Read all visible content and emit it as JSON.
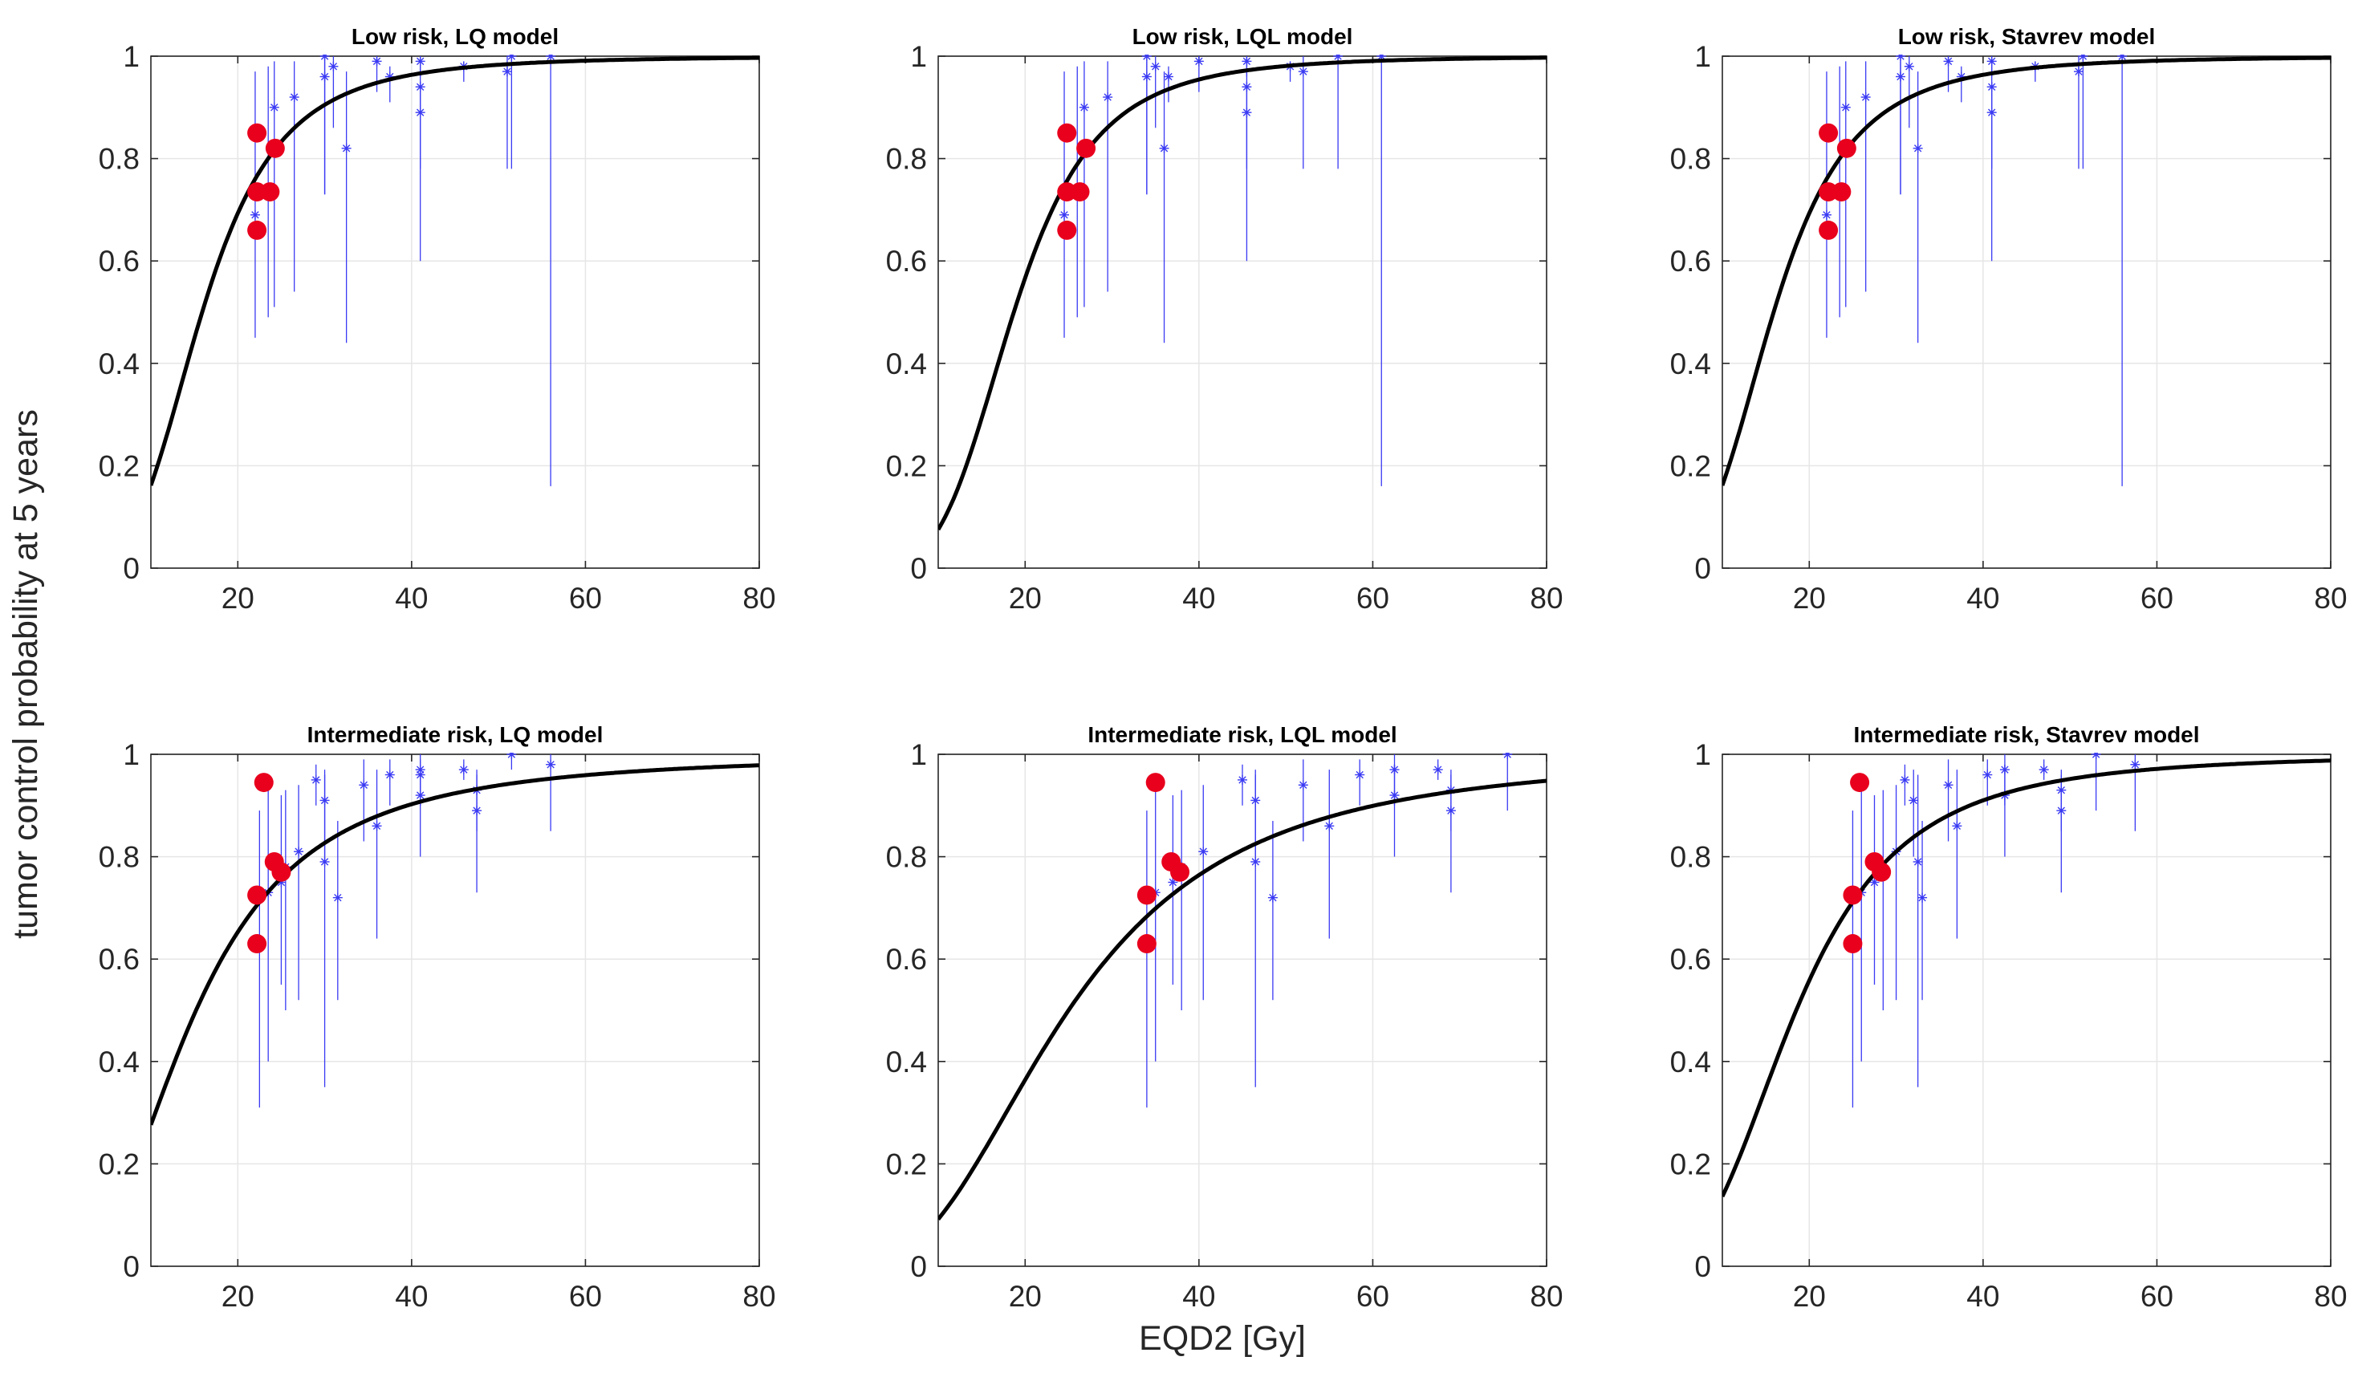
{
  "figure": {
    "xlabel": "EQD2 [Gy]",
    "ylabel": "tumor control probability at 5 years"
  },
  "colors": {
    "curve": "#000000",
    "observed": "#e8001d",
    "clinical": "#3a3af4",
    "grid": "#e6e6e6",
    "axis": "#262626"
  },
  "chart_data": [
    {
      "type": "scatter",
      "title": "Low risk, LQ model",
      "xlim": [
        10,
        80
      ],
      "ylim": [
        0,
        1
      ],
      "xticks": [
        20,
        40,
        60,
        80
      ],
      "yticks": [
        0,
        0.2,
        0.4,
        0.6,
        0.8,
        1
      ],
      "curve": {
        "d50": 15.9,
        "k": 3.55
      },
      "clinical": [
        {
          "x": 22.0,
          "y": 0.69,
          "lo": 0.45,
          "hi": 0.97
        },
        {
          "x": 23.5,
          "y": 0.73,
          "lo": 0.49,
          "hi": 0.98
        },
        {
          "x": 24.2,
          "y": 0.9,
          "lo": 0.51,
          "hi": 0.99
        },
        {
          "x": 26.5,
          "y": 0.92,
          "lo": 0.54,
          "hi": 0.99
        },
        {
          "x": 30.0,
          "y": 1.0,
          "lo": 0.73,
          "hi": 1.0
        },
        {
          "x": 30.0,
          "y": 0.96,
          "lo": 0.73,
          "hi": 0.99
        },
        {
          "x": 31.0,
          "y": 0.98,
          "lo": 0.86,
          "hi": 1.0
        },
        {
          "x": 32.5,
          "y": 0.82,
          "lo": 0.44,
          "hi": 0.97
        },
        {
          "x": 36.0,
          "y": 0.99,
          "lo": 0.93,
          "hi": 1.0
        },
        {
          "x": 37.5,
          "y": 0.96,
          "lo": 0.91,
          "hi": 0.98
        },
        {
          "x": 41.0,
          "y": 0.99,
          "lo": 0.96,
          "hi": 1.0
        },
        {
          "x": 41.0,
          "y": 0.94,
          "lo": 0.6,
          "hi": 0.99
        },
        {
          "x": 41.0,
          "y": 0.89,
          "lo": 0.78,
          "hi": 0.95
        },
        {
          "x": 46.0,
          "y": 0.98,
          "lo": 0.95,
          "hi": 0.99
        },
        {
          "x": 51.0,
          "y": 0.97,
          "lo": 0.78,
          "hi": 1.0
        },
        {
          "x": 51.5,
          "y": 1.0,
          "lo": 0.78,
          "hi": 1.0
        },
        {
          "x": 56.0,
          "y": 1.0,
          "lo": 0.16,
          "hi": 1.0
        }
      ],
      "observed": [
        {
          "x": 22.2,
          "y": 0.85
        },
        {
          "x": 22.2,
          "y": 0.735
        },
        {
          "x": 23.7,
          "y": 0.735
        },
        {
          "x": 24.3,
          "y": 0.82
        },
        {
          "x": 22.2,
          "y": 0.66
        }
      ]
    },
    {
      "type": "scatter",
      "title": "Low risk, LQL model",
      "xlim": [
        10,
        80
      ],
      "ylim": [
        0,
        1
      ],
      "xticks": [
        20,
        40,
        60,
        80
      ],
      "yticks": [
        0,
        0.2,
        0.4,
        0.6,
        0.8,
        1
      ],
      "curve": {
        "d50": 18.7,
        "k": 4.0
      },
      "clinical": [
        {
          "x": 24.5,
          "y": 0.69,
          "lo": 0.45,
          "hi": 0.97
        },
        {
          "x": 26.0,
          "y": 0.73,
          "lo": 0.49,
          "hi": 0.98
        },
        {
          "x": 26.8,
          "y": 0.9,
          "lo": 0.51,
          "hi": 0.99
        },
        {
          "x": 29.5,
          "y": 0.92,
          "lo": 0.54,
          "hi": 0.99
        },
        {
          "x": 34.0,
          "y": 1.0,
          "lo": 0.73,
          "hi": 1.0
        },
        {
          "x": 34.0,
          "y": 0.96,
          "lo": 0.73,
          "hi": 0.99
        },
        {
          "x": 35.0,
          "y": 0.98,
          "lo": 0.86,
          "hi": 1.0
        },
        {
          "x": 36.5,
          "y": 0.96,
          "lo": 0.91,
          "hi": 0.98
        },
        {
          "x": 36.0,
          "y": 0.82,
          "lo": 0.44,
          "hi": 0.97
        },
        {
          "x": 40.0,
          "y": 0.99,
          "lo": 0.93,
          "hi": 1.0
        },
        {
          "x": 45.5,
          "y": 0.99,
          "lo": 0.96,
          "hi": 1.0
        },
        {
          "x": 45.5,
          "y": 0.94,
          "lo": 0.6,
          "hi": 0.99
        },
        {
          "x": 45.5,
          "y": 0.89,
          "lo": 0.78,
          "hi": 0.95
        },
        {
          "x": 50.5,
          "y": 0.98,
          "lo": 0.95,
          "hi": 0.99
        },
        {
          "x": 52.0,
          "y": 0.97,
          "lo": 0.78,
          "hi": 1.0
        },
        {
          "x": 56.0,
          "y": 1.0,
          "lo": 0.78,
          "hi": 1.0
        },
        {
          "x": 61.0,
          "y": 1.0,
          "lo": 0.16,
          "hi": 1.0
        }
      ],
      "observed": [
        {
          "x": 24.8,
          "y": 0.85
        },
        {
          "x": 24.8,
          "y": 0.735
        },
        {
          "x": 26.3,
          "y": 0.735
        },
        {
          "x": 27.0,
          "y": 0.82
        },
        {
          "x": 24.8,
          "y": 0.66
        }
      ]
    },
    {
      "type": "scatter",
      "title": "Low risk, Stavrev model",
      "xlim": [
        10,
        80
      ],
      "ylim": [
        0,
        1
      ],
      "xticks": [
        20,
        40,
        60,
        80
      ],
      "yticks": [
        0,
        0.2,
        0.4,
        0.6,
        0.8,
        1
      ],
      "curve": {
        "d50": 15.9,
        "k": 3.55
      },
      "clinical": [
        {
          "x": 22.0,
          "y": 0.69,
          "lo": 0.45,
          "hi": 0.97
        },
        {
          "x": 23.5,
          "y": 0.73,
          "lo": 0.49,
          "hi": 0.98
        },
        {
          "x": 24.2,
          "y": 0.9,
          "lo": 0.51,
          "hi": 0.99
        },
        {
          "x": 26.5,
          "y": 0.92,
          "lo": 0.54,
          "hi": 0.99
        },
        {
          "x": 30.5,
          "y": 1.0,
          "lo": 0.73,
          "hi": 1.0
        },
        {
          "x": 30.5,
          "y": 0.96,
          "lo": 0.73,
          "hi": 0.99
        },
        {
          "x": 31.5,
          "y": 0.98,
          "lo": 0.86,
          "hi": 1.0
        },
        {
          "x": 32.5,
          "y": 0.82,
          "lo": 0.44,
          "hi": 0.97
        },
        {
          "x": 36.0,
          "y": 0.99,
          "lo": 0.93,
          "hi": 1.0
        },
        {
          "x": 37.5,
          "y": 0.96,
          "lo": 0.91,
          "hi": 0.98
        },
        {
          "x": 41.0,
          "y": 0.99,
          "lo": 0.96,
          "hi": 1.0
        },
        {
          "x": 41.0,
          "y": 0.94,
          "lo": 0.6,
          "hi": 0.99
        },
        {
          "x": 41.0,
          "y": 0.89,
          "lo": 0.78,
          "hi": 0.95
        },
        {
          "x": 46.0,
          "y": 0.98,
          "lo": 0.95,
          "hi": 0.99
        },
        {
          "x": 51.0,
          "y": 0.97,
          "lo": 0.78,
          "hi": 1.0
        },
        {
          "x": 51.5,
          "y": 1.0,
          "lo": 0.78,
          "hi": 1.0
        },
        {
          "x": 56.0,
          "y": 1.0,
          "lo": 0.16,
          "hi": 1.0
        }
      ],
      "observed": [
        {
          "x": 22.2,
          "y": 0.85
        },
        {
          "x": 22.2,
          "y": 0.735
        },
        {
          "x": 23.7,
          "y": 0.735
        },
        {
          "x": 24.3,
          "y": 0.82
        },
        {
          "x": 22.2,
          "y": 0.66
        }
      ]
    },
    {
      "type": "scatter",
      "title": "Intermediate risk, LQ model",
      "xlim": [
        10,
        80
      ],
      "ylim": [
        0,
        1
      ],
      "xticks": [
        20,
        40,
        60,
        80
      ],
      "yticks": [
        0,
        0.2,
        0.4,
        0.6,
        0.8,
        1
      ],
      "curve": {
        "d50": 15.2,
        "k": 2.3
      },
      "clinical": [
        {
          "x": 22.5,
          "y": 0.63,
          "lo": 0.31,
          "hi": 0.89
        },
        {
          "x": 23.5,
          "y": 0.73,
          "lo": 0.4,
          "hi": 0.94
        },
        {
          "x": 25.0,
          "y": 0.75,
          "lo": 0.55,
          "hi": 0.92
        },
        {
          "x": 25.5,
          "y": 0.78,
          "lo": 0.5,
          "hi": 0.93
        },
        {
          "x": 27.0,
          "y": 0.81,
          "lo": 0.52,
          "hi": 0.94
        },
        {
          "x": 29.0,
          "y": 0.95,
          "lo": 0.9,
          "hi": 0.98
        },
        {
          "x": 30.0,
          "y": 0.91,
          "lo": 0.8,
          "hi": 0.97
        },
        {
          "x": 30.0,
          "y": 0.79,
          "lo": 0.35,
          "hi": 0.96
        },
        {
          "x": 31.5,
          "y": 0.72,
          "lo": 0.52,
          "hi": 0.87
        },
        {
          "x": 34.5,
          "y": 0.94,
          "lo": 0.83,
          "hi": 0.99
        },
        {
          "x": 36.0,
          "y": 0.86,
          "lo": 0.64,
          "hi": 0.97
        },
        {
          "x": 37.5,
          "y": 0.96,
          "lo": 0.9,
          "hi": 0.99
        },
        {
          "x": 41.0,
          "y": 0.97,
          "lo": 0.9,
          "hi": 1.0
        },
        {
          "x": 41.0,
          "y": 0.96,
          "lo": 0.9,
          "hi": 0.99
        },
        {
          "x": 41.0,
          "y": 0.92,
          "lo": 0.8,
          "hi": 0.98
        },
        {
          "x": 46.0,
          "y": 0.97,
          "lo": 0.95,
          "hi": 0.99
        },
        {
          "x": 47.5,
          "y": 0.93,
          "lo": 0.85,
          "hi": 0.97
        },
        {
          "x": 47.5,
          "y": 0.89,
          "lo": 0.73,
          "hi": 0.96
        },
        {
          "x": 51.5,
          "y": 1.0,
          "lo": 0.97,
          "hi": 1.0
        },
        {
          "x": 56.0,
          "y": 0.98,
          "lo": 0.85,
          "hi": 1.0
        }
      ],
      "observed": [
        {
          "x": 23.0,
          "y": 0.945
        },
        {
          "x": 24.2,
          "y": 0.79
        },
        {
          "x": 25.0,
          "y": 0.77
        },
        {
          "x": 22.2,
          "y": 0.725
        },
        {
          "x": 22.2,
          "y": 0.63
        }
      ]
    },
    {
      "type": "scatter",
      "title": "Intermediate risk, LQL model",
      "xlim": [
        10,
        80
      ],
      "ylim": [
        0,
        1
      ],
      "xticks": [
        20,
        40,
        60,
        80
      ],
      "yticks": [
        0,
        0.2,
        0.4,
        0.6,
        0.8,
        1
      ],
      "curve": {
        "d50": 25.0,
        "k": 2.5
      },
      "clinical": [
        {
          "x": 34.0,
          "y": 0.63,
          "lo": 0.31,
          "hi": 0.89
        },
        {
          "x": 35.0,
          "y": 0.73,
          "lo": 0.4,
          "hi": 0.94
        },
        {
          "x": 37.0,
          "y": 0.75,
          "lo": 0.55,
          "hi": 0.92
        },
        {
          "x": 38.0,
          "y": 0.78,
          "lo": 0.5,
          "hi": 0.93
        },
        {
          "x": 40.5,
          "y": 0.81,
          "lo": 0.52,
          "hi": 0.94
        },
        {
          "x": 45.0,
          "y": 0.95,
          "lo": 0.9,
          "hi": 0.98
        },
        {
          "x": 46.5,
          "y": 0.91,
          "lo": 0.8,
          "hi": 0.97
        },
        {
          "x": 46.5,
          "y": 0.79,
          "lo": 0.35,
          "hi": 0.96
        },
        {
          "x": 48.5,
          "y": 0.72,
          "lo": 0.52,
          "hi": 0.87
        },
        {
          "x": 52.0,
          "y": 0.94,
          "lo": 0.83,
          "hi": 0.99
        },
        {
          "x": 55.0,
          "y": 0.86,
          "lo": 0.64,
          "hi": 0.97
        },
        {
          "x": 58.5,
          "y": 0.96,
          "lo": 0.9,
          "hi": 0.99
        },
        {
          "x": 62.5,
          "y": 0.97,
          "lo": 0.9,
          "hi": 1.0
        },
        {
          "x": 62.5,
          "y": 0.92,
          "lo": 0.8,
          "hi": 0.98
        },
        {
          "x": 67.5,
          "y": 0.97,
          "lo": 0.95,
          "hi": 0.99
        },
        {
          "x": 69.0,
          "y": 0.93,
          "lo": 0.85,
          "hi": 0.97
        },
        {
          "x": 69.0,
          "y": 0.89,
          "lo": 0.73,
          "hi": 0.96
        },
        {
          "x": 75.5,
          "y": 1.0,
          "lo": 0.89,
          "hi": 1.0
        }
      ],
      "observed": [
        {
          "x": 35.0,
          "y": 0.945
        },
        {
          "x": 36.8,
          "y": 0.79
        },
        {
          "x": 37.8,
          "y": 0.77
        },
        {
          "x": 34.0,
          "y": 0.725
        },
        {
          "x": 34.0,
          "y": 0.63
        }
      ]
    },
    {
      "type": "scatter",
      "title": "Intermediate risk, Stavrev model",
      "xlim": [
        10,
        80
      ],
      "ylim": [
        0,
        1
      ],
      "xticks": [
        20,
        40,
        60,
        80
      ],
      "yticks": [
        0,
        0.2,
        0.4,
        0.6,
        0.8,
        1
      ],
      "curve": {
        "d50": 18.5,
        "k": 3.0
      },
      "clinical": [
        {
          "x": 25.0,
          "y": 0.63,
          "lo": 0.31,
          "hi": 0.89
        },
        {
          "x": 26.0,
          "y": 0.73,
          "lo": 0.4,
          "hi": 0.94
        },
        {
          "x": 27.5,
          "y": 0.75,
          "lo": 0.55,
          "hi": 0.92
        },
        {
          "x": 28.5,
          "y": 0.78,
          "lo": 0.5,
          "hi": 0.93
        },
        {
          "x": 30.0,
          "y": 0.81,
          "lo": 0.52,
          "hi": 0.94
        },
        {
          "x": 31.0,
          "y": 0.95,
          "lo": 0.9,
          "hi": 0.98
        },
        {
          "x": 32.0,
          "y": 0.91,
          "lo": 0.8,
          "hi": 0.97
        },
        {
          "x": 32.5,
          "y": 0.79,
          "lo": 0.35,
          "hi": 0.96
        },
        {
          "x": 33.0,
          "y": 0.72,
          "lo": 0.52,
          "hi": 0.87
        },
        {
          "x": 36.0,
          "y": 0.94,
          "lo": 0.83,
          "hi": 0.99
        },
        {
          "x": 37.0,
          "y": 0.86,
          "lo": 0.64,
          "hi": 0.97
        },
        {
          "x": 40.5,
          "y": 0.96,
          "lo": 0.9,
          "hi": 0.99
        },
        {
          "x": 42.5,
          "y": 0.97,
          "lo": 0.9,
          "hi": 1.0
        },
        {
          "x": 42.5,
          "y": 0.92,
          "lo": 0.8,
          "hi": 0.98
        },
        {
          "x": 47.0,
          "y": 0.97,
          "lo": 0.95,
          "hi": 0.99
        },
        {
          "x": 49.0,
          "y": 0.93,
          "lo": 0.85,
          "hi": 0.97
        },
        {
          "x": 49.0,
          "y": 0.89,
          "lo": 0.73,
          "hi": 0.96
        },
        {
          "x": 53.0,
          "y": 1.0,
          "lo": 0.89,
          "hi": 1.0
        },
        {
          "x": 57.5,
          "y": 0.98,
          "lo": 0.85,
          "hi": 1.0
        }
      ],
      "observed": [
        {
          "x": 25.8,
          "y": 0.945
        },
        {
          "x": 27.5,
          "y": 0.79
        },
        {
          "x": 28.3,
          "y": 0.77
        },
        {
          "x": 25.0,
          "y": 0.725
        },
        {
          "x": 25.0,
          "y": 0.63
        }
      ]
    }
  ]
}
